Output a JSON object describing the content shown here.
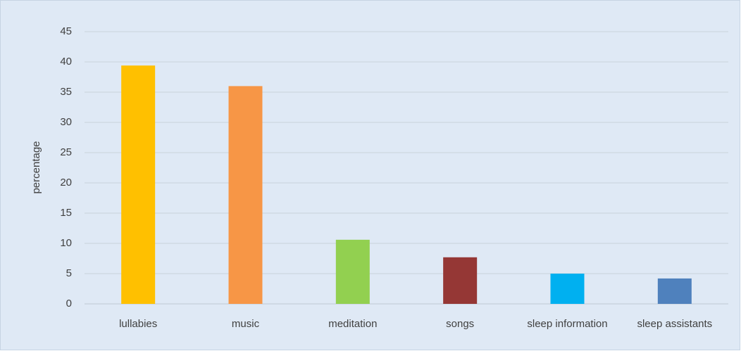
{
  "chart_data": {
    "type": "bar",
    "title": "",
    "xlabel": "",
    "ylabel": "percentage",
    "categories": [
      "lullabies",
      "music",
      "meditation",
      "songs",
      "sleep information",
      "sleep assistants"
    ],
    "values": [
      39.4,
      36.0,
      10.6,
      7.7,
      5.0,
      4.2
    ],
    "bar_colors": [
      "#ffc000",
      "#f79646",
      "#92d050",
      "#953735",
      "#00b0f0",
      "#4f81bd"
    ],
    "ylim": [
      0,
      45
    ],
    "yticks": [
      0,
      5,
      10,
      15,
      20,
      25,
      30,
      35,
      40,
      45
    ],
    "grid": true,
    "legend": "none"
  },
  "colors": {
    "plot_background": "#dfe9f5",
    "border": "#c6d4e3",
    "gridline": "#c8d2dc",
    "text": "#404040"
  }
}
